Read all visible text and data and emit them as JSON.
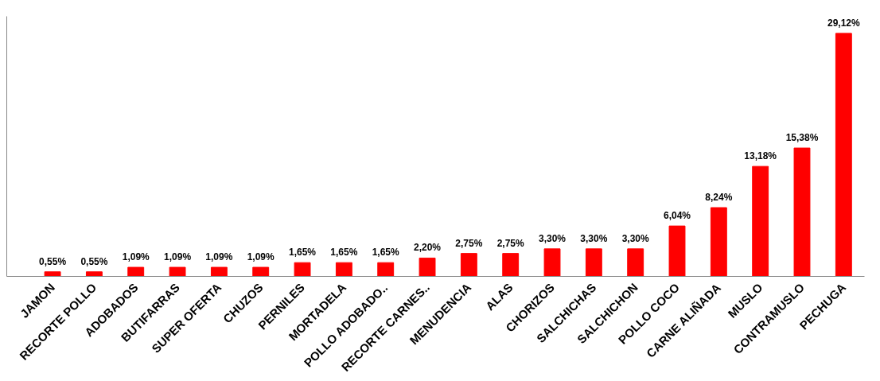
{
  "chart_data": {
    "type": "bar",
    "categories": [
      "JAMON",
      "RECORTE POLLO",
      "ADOBADOS",
      "BUTIFARRAS",
      "SUPER OFERTA",
      "CHUZOS",
      "PERNILES",
      "MORTADELA",
      "POLLO ADOBADO..",
      "RECORTE CARNES..",
      "MENUDENCIA",
      "ALAS",
      "CHORIZOS",
      "SALCHICHAS",
      "SALCHICHON",
      "POLLO COCO",
      "CARNE ALIÑADA",
      "MUSLO",
      "CONTRAMUSLO",
      "PECHUGA"
    ],
    "values": [
      0.55,
      0.55,
      1.09,
      1.09,
      1.09,
      1.09,
      1.65,
      1.65,
      1.65,
      2.2,
      2.75,
      2.75,
      3.3,
      3.3,
      3.3,
      6.04,
      8.24,
      13.18,
      15.38,
      29.12
    ],
    "value_labels": [
      "0,55%",
      "0,55%",
      "1,09%",
      "1,09%",
      "1,09%",
      "1,09%",
      "1,65%",
      "1,65%",
      "1,65%",
      "2,20%",
      "2,75%",
      "2,75%",
      "3,30%",
      "3,30%",
      "3,30%",
      "6,04%",
      "8,24%",
      "13,18%",
      "15,38%",
      "29,12%"
    ],
    "color": "#ff0000"
  }
}
